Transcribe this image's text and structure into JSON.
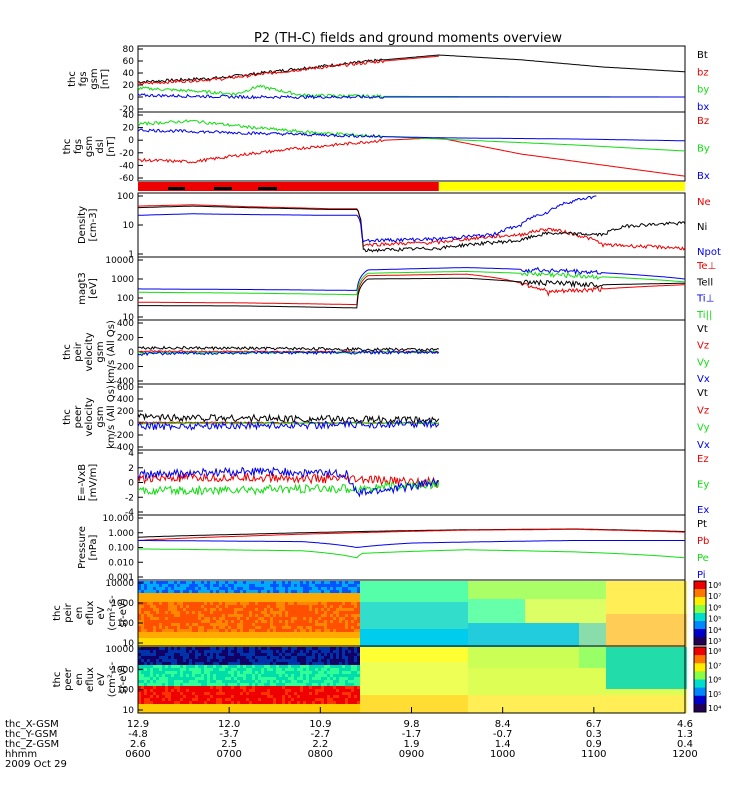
{
  "title": "P2 (TH-C) fields and ground moments overview",
  "x_ticks": {
    "thc_X_GSM": [
      "12.9",
      "12.0",
      "10.9",
      "9.8",
      "8.4",
      "6.7",
      "4.6"
    ],
    "thc_Y_GSM": [
      "-4.8",
      "-3.7",
      "-2.7",
      "-1.7",
      "-0.7",
      "0.3",
      "1.3"
    ],
    "thc_Z_GSM": [
      "2.6",
      "2.5",
      "2.2",
      "1.9",
      "1.4",
      "0.9",
      "0.4"
    ],
    "hhmm": [
      "0600",
      "0700",
      "0800",
      "0900",
      "1000",
      "1100",
      "1200"
    ]
  },
  "x_row_labels": [
    "thc_X-GSM",
    "thc_Y-GSM",
    "thc_Z-GSM",
    "hhmm"
  ],
  "date_label": "2009 Oct 29",
  "colors": {
    "black": "#000000",
    "red": "#ee0000",
    "green": "#11dd11",
    "blue": "#0000ee",
    "yellow": "#ffff00"
  },
  "chart_data": [
    {
      "type": "line",
      "ylabel": [
        "thc",
        "fgs",
        "gsm",
        "[nT]"
      ],
      "yticks": [
        "80",
        "60",
        "40",
        "20",
        "0",
        "-20"
      ],
      "ylim": [
        -20,
        80
      ],
      "series": [
        {
          "name": "Bt",
          "color": "#000000",
          "shape": [
            [
              0,
              25
            ],
            [
              0.15,
              32
            ],
            [
              0.3,
              48
            ],
            [
              0.45,
              62
            ],
            [
              0.55,
              70
            ],
            [
              0.7,
              62
            ],
            [
              0.85,
              50
            ],
            [
              1,
              42
            ]
          ],
          "end": 1
        },
        {
          "name": "bz",
          "color": "#ee0000",
          "shape": [
            [
              0,
              22
            ],
            [
              0.15,
              30
            ],
            [
              0.3,
              46
            ],
            [
              0.45,
              60
            ],
            [
              0.55,
              68
            ]
          ],
          "end": 0.55
        },
        {
          "name": "by",
          "color": "#11dd11",
          "shape": [
            [
              0,
              15
            ],
            [
              0.1,
              10
            ],
            [
              0.18,
              5
            ],
            [
              0.22,
              18
            ],
            [
              0.3,
              3
            ],
            [
              0.45,
              1
            ],
            [
              1,
              0
            ]
          ],
          "end": 1
        },
        {
          "name": "bx",
          "color": "#0000ee",
          "shape": [
            [
              0,
              3
            ],
            [
              0.2,
              0
            ],
            [
              0.45,
              0
            ],
            [
              1,
              0
            ]
          ],
          "end": 1
        }
      ]
    },
    {
      "type": "line",
      "ylabel": [
        "thc",
        "fgs",
        "gsm",
        "dsl",
        "[nT]"
      ],
      "yticks": [
        "40",
        "20",
        "0",
        "-20",
        "-40",
        "-60"
      ],
      "ylim": [
        -65,
        40
      ],
      "series": [
        {
          "name": "Bz",
          "color": "#ee0000",
          "shape": [
            [
              0,
              -35
            ],
            [
              0.1,
              -38
            ],
            [
              0.2,
              -25
            ],
            [
              0.3,
              -15
            ],
            [
              0.45,
              -2
            ],
            [
              0.55,
              2
            ],
            [
              0.7,
              -25
            ],
            [
              1,
              -62
            ]
          ],
          "end": 1
        },
        {
          "name": "By",
          "color": "#11dd11",
          "shape": [
            [
              0,
              25
            ],
            [
              0.1,
              30
            ],
            [
              0.2,
              20
            ],
            [
              0.3,
              12
            ],
            [
              0.45,
              4
            ],
            [
              0.55,
              0
            ],
            [
              0.8,
              -10
            ],
            [
              1,
              -20
            ]
          ],
          "end": 1
        },
        {
          "name": "Bx",
          "color": "#0000ee",
          "shape": [
            [
              0,
              15
            ],
            [
              0.2,
              10
            ],
            [
              0.45,
              4
            ],
            [
              0.55,
              2
            ],
            [
              0.8,
              0
            ],
            [
              1,
              -3
            ]
          ],
          "end": 1
        }
      ]
    },
    {
      "type": "bar_strip",
      "colors": [
        "#ee0000",
        "#ffff00"
      ],
      "split": 0.55
    },
    {
      "type": "line",
      "log": true,
      "ylabel": [
        "Density",
        "[cm-3]"
      ],
      "yticks": [
        "100",
        "10",
        "1"
      ],
      "ylim": [
        0.1,
        100
      ],
      "series": [
        {
          "name": "Ne",
          "color": "#ee0000",
          "shape": [
            [
              0,
              30
            ],
            [
              0.1,
              35
            ],
            [
              0.2,
              28
            ],
            [
              0.35,
              22
            ],
            [
              0.4,
              22
            ],
            [
              0.41,
              0.3
            ],
            [
              0.55,
              0.4
            ],
            [
              0.7,
              1.0
            ],
            [
              0.75,
              2
            ],
            [
              0.8,
              1
            ],
            [
              0.85,
              0.3
            ],
            [
              1,
              0.2
            ]
          ],
          "end": 1
        },
        {
          "name": "Ni",
          "color": "#000000",
          "shape": [
            [
              0,
              25
            ],
            [
              0.1,
              30
            ],
            [
              0.2,
              25
            ],
            [
              0.35,
              20
            ],
            [
              0.4,
              20
            ],
            [
              0.41,
              0.15
            ],
            [
              0.55,
              0.2
            ],
            [
              0.7,
              0.5
            ],
            [
              0.75,
              1.2
            ],
            [
              0.85,
              1
            ],
            [
              0.9,
              3
            ],
            [
              1,
              4
            ]
          ],
          "end": 1
        },
        {
          "name": "Npot",
          "color": "#0000ee",
          "shape": [
            [
              0,
              10
            ],
            [
              0.1,
              12
            ],
            [
              0.2,
              11
            ],
            [
              0.35,
              10
            ],
            [
              0.4,
              10
            ],
            [
              0.41,
              0.5
            ],
            [
              0.55,
              0.6
            ],
            [
              0.65,
              1
            ],
            [
              0.7,
              3
            ],
            [
              0.75,
              15
            ],
            [
              0.8,
              60
            ],
            [
              0.84,
              100
            ]
          ],
          "end": 0.84
        }
      ]
    },
    {
      "type": "line",
      "log": true,
      "ylabel": [
        "magt3",
        "[eV]"
      ],
      "yticks": [
        "10000",
        "1000",
        "100",
        "10"
      ],
      "ylim": [
        10,
        10000
      ],
      "series": [
        {
          "name": "Te⊥",
          "color": "#ee0000",
          "shape": [
            [
              0,
              60
            ],
            [
              0.2,
              55
            ],
            [
              0.4,
              45
            ],
            [
              0.42,
              1500
            ],
            [
              0.6,
              1800
            ],
            [
              0.7,
              600
            ],
            [
              0.75,
              200
            ],
            [
              0.85,
              300
            ],
            [
              1,
              500
            ]
          ],
          "end": 1
        },
        {
          "name": "Tell",
          "color": "#000000",
          "shape": [
            [
              0,
              40
            ],
            [
              0.2,
              38
            ],
            [
              0.4,
              30
            ],
            [
              0.42,
              1000
            ],
            [
              0.6,
              1100
            ],
            [
              0.7,
              700
            ],
            [
              0.85,
              500
            ],
            [
              1,
              600
            ]
          ],
          "end": 1
        },
        {
          "name": "Ti⊥",
          "color": "#0000ee",
          "shape": [
            [
              0,
              300
            ],
            [
              0.2,
              280
            ],
            [
              0.4,
              250
            ],
            [
              0.42,
              3000
            ],
            [
              0.6,
              4000
            ],
            [
              0.8,
              2500
            ],
            [
              1,
              1000
            ]
          ],
          "end": 1
        },
        {
          "name": "Ti||",
          "color": "#11dd11",
          "shape": [
            [
              0,
              200
            ],
            [
              0.2,
              180
            ],
            [
              0.4,
              150
            ],
            [
              0.42,
              2000
            ],
            [
              0.6,
              2500
            ],
            [
              0.8,
              1500
            ],
            [
              1,
              700
            ]
          ],
          "end": 1
        }
      ]
    },
    {
      "type": "line",
      "ylabel": [
        "thc",
        "peir",
        "velocity",
        "gsm",
        "km/s (All Qs)"
      ],
      "yticks": [
        "400",
        "200",
        "0",
        "-200",
        "-400"
      ],
      "ylim": [
        -400,
        400
      ],
      "series": [
        {
          "name": "Vt",
          "color": "#000000",
          "shape": [
            [
              0,
              60
            ],
            [
              0.2,
              50
            ],
            [
              0.4,
              40
            ],
            [
              0.55,
              30
            ]
          ],
          "end": 0.55
        },
        {
          "name": "Vz",
          "color": "#ee0000",
          "shape": [
            [
              0,
              10
            ],
            [
              0.3,
              5
            ],
            [
              0.55,
              0
            ]
          ],
          "end": 0.55
        },
        {
          "name": "Vy",
          "color": "#11dd11",
          "shape": [
            [
              0,
              -10
            ],
            [
              0.3,
              -5
            ],
            [
              0.55,
              0
            ]
          ],
          "end": 0.55
        },
        {
          "name": "Vx",
          "color": "#0000ee",
          "shape": [
            [
              0,
              -40
            ],
            [
              0.02,
              -20
            ],
            [
              0.3,
              -10
            ],
            [
              0.55,
              -5
            ]
          ],
          "end": 0.55
        }
      ]
    },
    {
      "type": "line",
      "ylabel": [
        "thc",
        "peer",
        "velocity",
        "gsm",
        "km/s (All Qs)"
      ],
      "yticks": [
        "600",
        "400",
        "200",
        "0",
        "-200",
        "-400"
      ],
      "ylim": [
        -400,
        600
      ],
      "series": [
        {
          "name": "Vt",
          "color": "#000000",
          "shape": [
            [
              0,
              100
            ],
            [
              0.2,
              80
            ],
            [
              0.4,
              60
            ],
            [
              0.55,
              40
            ]
          ],
          "end": 0.55
        },
        {
          "name": "Vz",
          "color": "#ee0000",
          "shape": [
            [
              0,
              10
            ],
            [
              0.55,
              0
            ]
          ],
          "end": 0.55
        },
        {
          "name": "Vy",
          "color": "#11dd11",
          "shape": [
            [
              0,
              -10
            ],
            [
              0.55,
              0
            ]
          ],
          "end": 0.55
        },
        {
          "name": "Vx",
          "color": "#0000ee",
          "shape": [
            [
              0,
              -60
            ],
            [
              0.2,
              -40
            ],
            [
              0.4,
              -30
            ],
            [
              0.55,
              -10
            ]
          ],
          "end": 0.55
        }
      ]
    },
    {
      "type": "line",
      "ylabel": [
        "E=-VxB",
        "[mV/m]"
      ],
      "yticks": [
        "4",
        "2",
        "0",
        "-2",
        "-4"
      ],
      "ylim": [
        -4,
        4
      ],
      "series": [
        {
          "name": "Ez",
          "color": "#ee0000",
          "shape": [
            [
              0,
              0.5
            ],
            [
              0.2,
              0.7
            ],
            [
              0.4,
              0.4
            ],
            [
              0.55,
              0
            ]
          ],
          "end": 0.55
        },
        {
          "name": "Ey",
          "color": "#11dd11",
          "shape": [
            [
              0,
              -1.2
            ],
            [
              0.2,
              -1.0
            ],
            [
              0.4,
              -0.8
            ],
            [
              0.55,
              -0.2
            ]
          ],
          "end": 0.55
        },
        {
          "name": "Ex",
          "color": "#0000ee",
          "shape": [
            [
              0,
              1.0
            ],
            [
              0.2,
              1.5
            ],
            [
              0.38,
              1.2
            ],
            [
              0.4,
              -1.5
            ],
            [
              0.55,
              0
            ]
          ],
          "end": 0.55
        }
      ]
    },
    {
      "type": "line",
      "log": true,
      "ylabel": [
        "Pressure",
        "[nPa]"
      ],
      "yticks": [
        "10.000",
        "1.000",
        "0.100",
        "0.010",
        "0.001"
      ],
      "ylim": [
        0.001,
        10
      ],
      "series": [
        {
          "name": "Pt",
          "color": "#000000",
          "shape": [
            [
              0,
              0.5
            ],
            [
              0.2,
              0.8
            ],
            [
              0.4,
              1.2
            ],
            [
              0.6,
              1.6
            ],
            [
              0.8,
              1.8
            ],
            [
              1,
              1.2
            ]
          ],
          "end": 1
        },
        {
          "name": "Pb",
          "color": "#ee0000",
          "shape": [
            [
              0,
              0.3
            ],
            [
              0.2,
              0.6
            ],
            [
              0.4,
              1.0
            ],
            [
              0.6,
              1.5
            ],
            [
              0.8,
              1.7
            ],
            [
              1,
              1.1
            ]
          ],
          "end": 1
        },
        {
          "name": "Pe",
          "color": "#11dd11",
          "shape": [
            [
              0,
              0.08
            ],
            [
              0.3,
              0.06
            ],
            [
              0.4,
              0.02
            ],
            [
              0.41,
              0.04
            ],
            [
              0.6,
              0.07
            ],
            [
              0.8,
              0.05
            ],
            [
              1,
              0.02
            ]
          ],
          "end": 1
        },
        {
          "name": "Pi",
          "color": "#0000ee",
          "shape": [
            [
              0,
              0.3
            ],
            [
              0.3,
              0.25
            ],
            [
              0.4,
              0.1
            ],
            [
              0.5,
              0.2
            ],
            [
              0.8,
              0.3
            ],
            [
              1,
              0.3
            ]
          ],
          "end": 1
        }
      ]
    },
    {
      "type": "heatmap",
      "ylabel": [
        "thc",
        "peir",
        "en",
        "eflux",
        "eV",
        "(cm²-s-",
        "sr-eV)"
      ],
      "yticks": [
        "10000",
        "1000",
        "100",
        "10"
      ],
      "colorbar": [
        "10⁸",
        "10⁷",
        "10⁶",
        "10⁵",
        "10⁴",
        "10³"
      ]
    },
    {
      "type": "heatmap",
      "ylabel": [
        "thc",
        "peer",
        "en",
        "eflux",
        "eV",
        "(cm²-s-",
        "sr-eV)"
      ],
      "yticks": [
        "10000",
        "1000",
        "100",
        "10"
      ],
      "colorbar": [
        "10⁸",
        "10⁷",
        "10⁶",
        "10⁵",
        "10⁴"
      ]
    }
  ]
}
